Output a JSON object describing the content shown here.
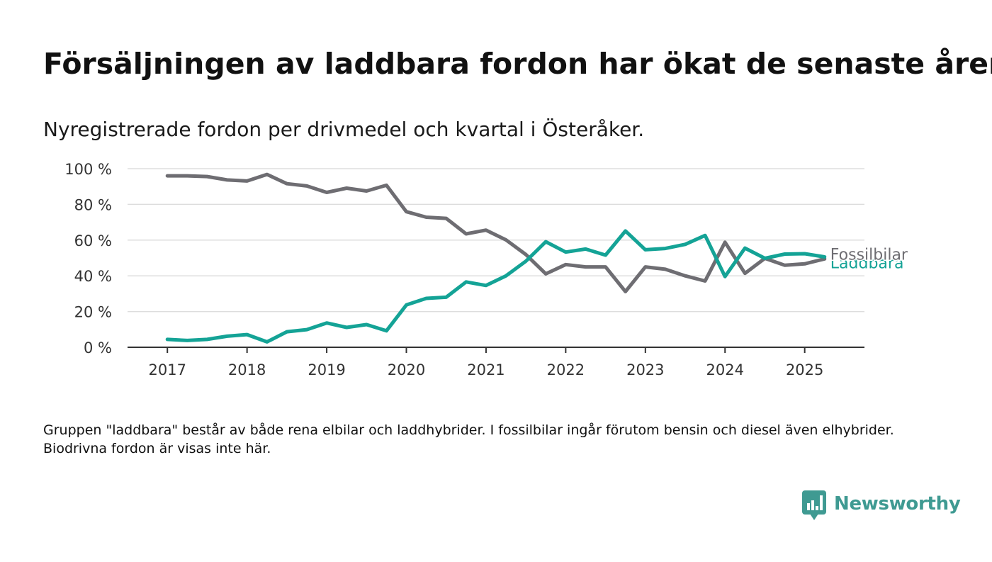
{
  "header": {
    "title": "Försäljningen av laddbara fordon har ökat de senaste åren",
    "subtitle": "Nyregistrerade fordon per drivmedel och kvartal i Österåker."
  },
  "footnote": "Gruppen \"laddbara\" består av både rena elbilar och laddhybrider. I fossilbilar ingår förutom bensin och diesel även elhybrider. Biodrivna fordon är visas inte här.",
  "brand": {
    "name": "Newsworthy",
    "icon": "newsworthy-logo-icon",
    "color": "#3f9a92"
  },
  "chart_data": {
    "type": "line",
    "title": "Försäljningen av laddbara fordon har ökat de senaste åren",
    "subtitle": "Nyregistrerade fordon per drivmedel och kvartal i Österåker.",
    "xlabel": "",
    "ylabel": "",
    "x": [
      "2017Q1",
      "2017Q2",
      "2017Q3",
      "2017Q4",
      "2018Q1",
      "2018Q2",
      "2018Q3",
      "2018Q4",
      "2019Q1",
      "2019Q2",
      "2019Q3",
      "2019Q4",
      "2020Q1",
      "2020Q2",
      "2020Q3",
      "2020Q4",
      "2021Q1",
      "2021Q2",
      "2021Q3",
      "2021Q4",
      "2022Q1",
      "2022Q2",
      "2022Q3",
      "2022Q4",
      "2023Q1",
      "2023Q2",
      "2023Q3",
      "2023Q4",
      "2024Q1",
      "2024Q2",
      "2024Q3",
      "2024Q4",
      "2025Q1",
      "2025Q2"
    ],
    "xlim": [
      "2016Q3",
      "2025Q4"
    ],
    "x_ticks": [
      "2017",
      "2018",
      "2019",
      "2020",
      "2021",
      "2022",
      "2023",
      "2024",
      "2025"
    ],
    "ylim": [
      0,
      100
    ],
    "y_ticks": [
      0,
      20,
      40,
      60,
      80,
      100
    ],
    "y_tick_labels": [
      "0 %",
      "20 %",
      "40 %",
      "60 %",
      "80 %",
      "100 %"
    ],
    "grid": true,
    "legend": "direct labels at line ends",
    "series": [
      {
        "name": "Fossilbilar",
        "color": "#6e6d72",
        "values": [
          96,
          96,
          95.6,
          93.7,
          93.1,
          96.8,
          91.6,
          90.3,
          86.7,
          89.1,
          87.5,
          90.7,
          75.9,
          72.8,
          72.2,
          63.5,
          65.6,
          60.1,
          51.9,
          41.1,
          46.3,
          45.0,
          45.0,
          31.2,
          45.0,
          43.7,
          40.0,
          37.1,
          58.8,
          41.4,
          49.8,
          45.9,
          46.7,
          49.5
        ]
      },
      {
        "name": "Laddbara",
        "color": "#14a396",
        "values": [
          4.4,
          3.8,
          4.4,
          6.2,
          7.1,
          3.0,
          8.7,
          9.9,
          13.6,
          11.1,
          12.7,
          9.2,
          23.7,
          27.4,
          28.0,
          36.6,
          34.6,
          40.0,
          48.2,
          59.1,
          53.3,
          55.0,
          51.6,
          65.1,
          54.6,
          55.3,
          57.6,
          62.6,
          39.6,
          55.5,
          49.8,
          52.2,
          52.4,
          50.6
        ]
      }
    ]
  }
}
